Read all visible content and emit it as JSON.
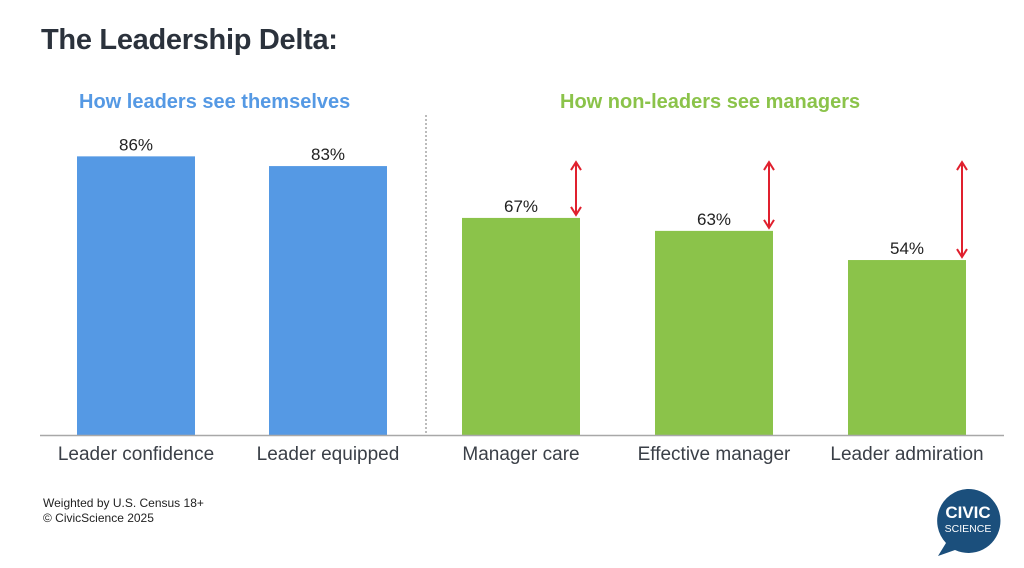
{
  "chart_data": {
    "type": "bar",
    "title": "The Leadership Delta:",
    "groups": [
      {
        "label": "How leaders see themselves",
        "color": "#5599e4",
        "categories": [
          "Leader confidence",
          "Leader equipped"
        ],
        "values": [
          86,
          83
        ]
      },
      {
        "label": "How non-leaders see managers",
        "color": "#8bc34a",
        "categories": [
          "Manager care",
          "Effective manager",
          "Leader admiration"
        ],
        "values": [
          67,
          63,
          54
        ]
      }
    ],
    "categories": [
      "Leader confidence",
      "Leader equipped",
      "Manager care",
      "Effective manager",
      "Leader admiration"
    ],
    "values": [
      86,
      83,
      67,
      63,
      54
    ],
    "value_labels": [
      "86%",
      "83%",
      "67%",
      "63%",
      "54%"
    ],
    "xlabel": "",
    "ylabel": "",
    "ylim": [
      0,
      100
    ],
    "grid": false,
    "annotations": [
      {
        "type": "double-arrow",
        "category": "Manager care",
        "from": 67,
        "to": 83,
        "color": "#e0202e"
      },
      {
        "type": "double-arrow",
        "category": "Effective manager",
        "from": 63,
        "to": 83,
        "color": "#e0202e"
      },
      {
        "type": "double-arrow",
        "category": "Leader admiration",
        "from": 54,
        "to": 83,
        "color": "#e0202e"
      }
    ]
  },
  "footer": {
    "line1": "Weighted by U.S. Census 18+",
    "line2": "© CivicScience 2025"
  },
  "logo": {
    "line1": "CIVIC",
    "line2": "SCIENCE",
    "color": "#1b4f7c"
  }
}
